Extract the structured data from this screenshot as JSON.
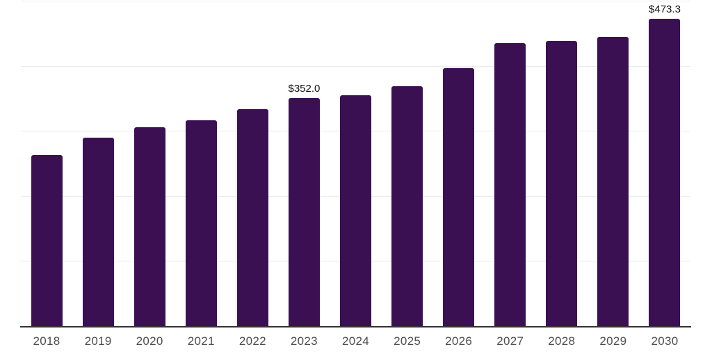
{
  "chart_data": {
    "type": "bar",
    "title": "",
    "xlabel": "",
    "ylabel": "",
    "categories": [
      "2018",
      "2019",
      "2020",
      "2021",
      "2022",
      "2023",
      "2024",
      "2025",
      "2026",
      "2027",
      "2028",
      "2029",
      "2030"
    ],
    "values": [
      263.7,
      290.4,
      307.1,
      317.8,
      334.3,
      352.0,
      356.3,
      370.2,
      397.3,
      435.8,
      439.0,
      445.4,
      473.3
    ],
    "bar_labels": [
      "",
      "",
      "",
      "",
      "",
      "$352.0",
      "",
      "",
      "",
      "",
      "",
      "",
      "$473.3"
    ],
    "ylim": [
      0,
      500
    ],
    "y_gridlines": [
      100,
      200,
      300,
      400,
      500
    ],
    "grid": "on",
    "legend": "none",
    "y_axis_labels_visible": false,
    "colors": {
      "bar": "#3a1053",
      "axis_line": "#333333",
      "gridline": "#ebebeb",
      "x_label_text": "#4d4d4d",
      "data_label_text": "#111111",
      "background": "#ffffff"
    }
  }
}
